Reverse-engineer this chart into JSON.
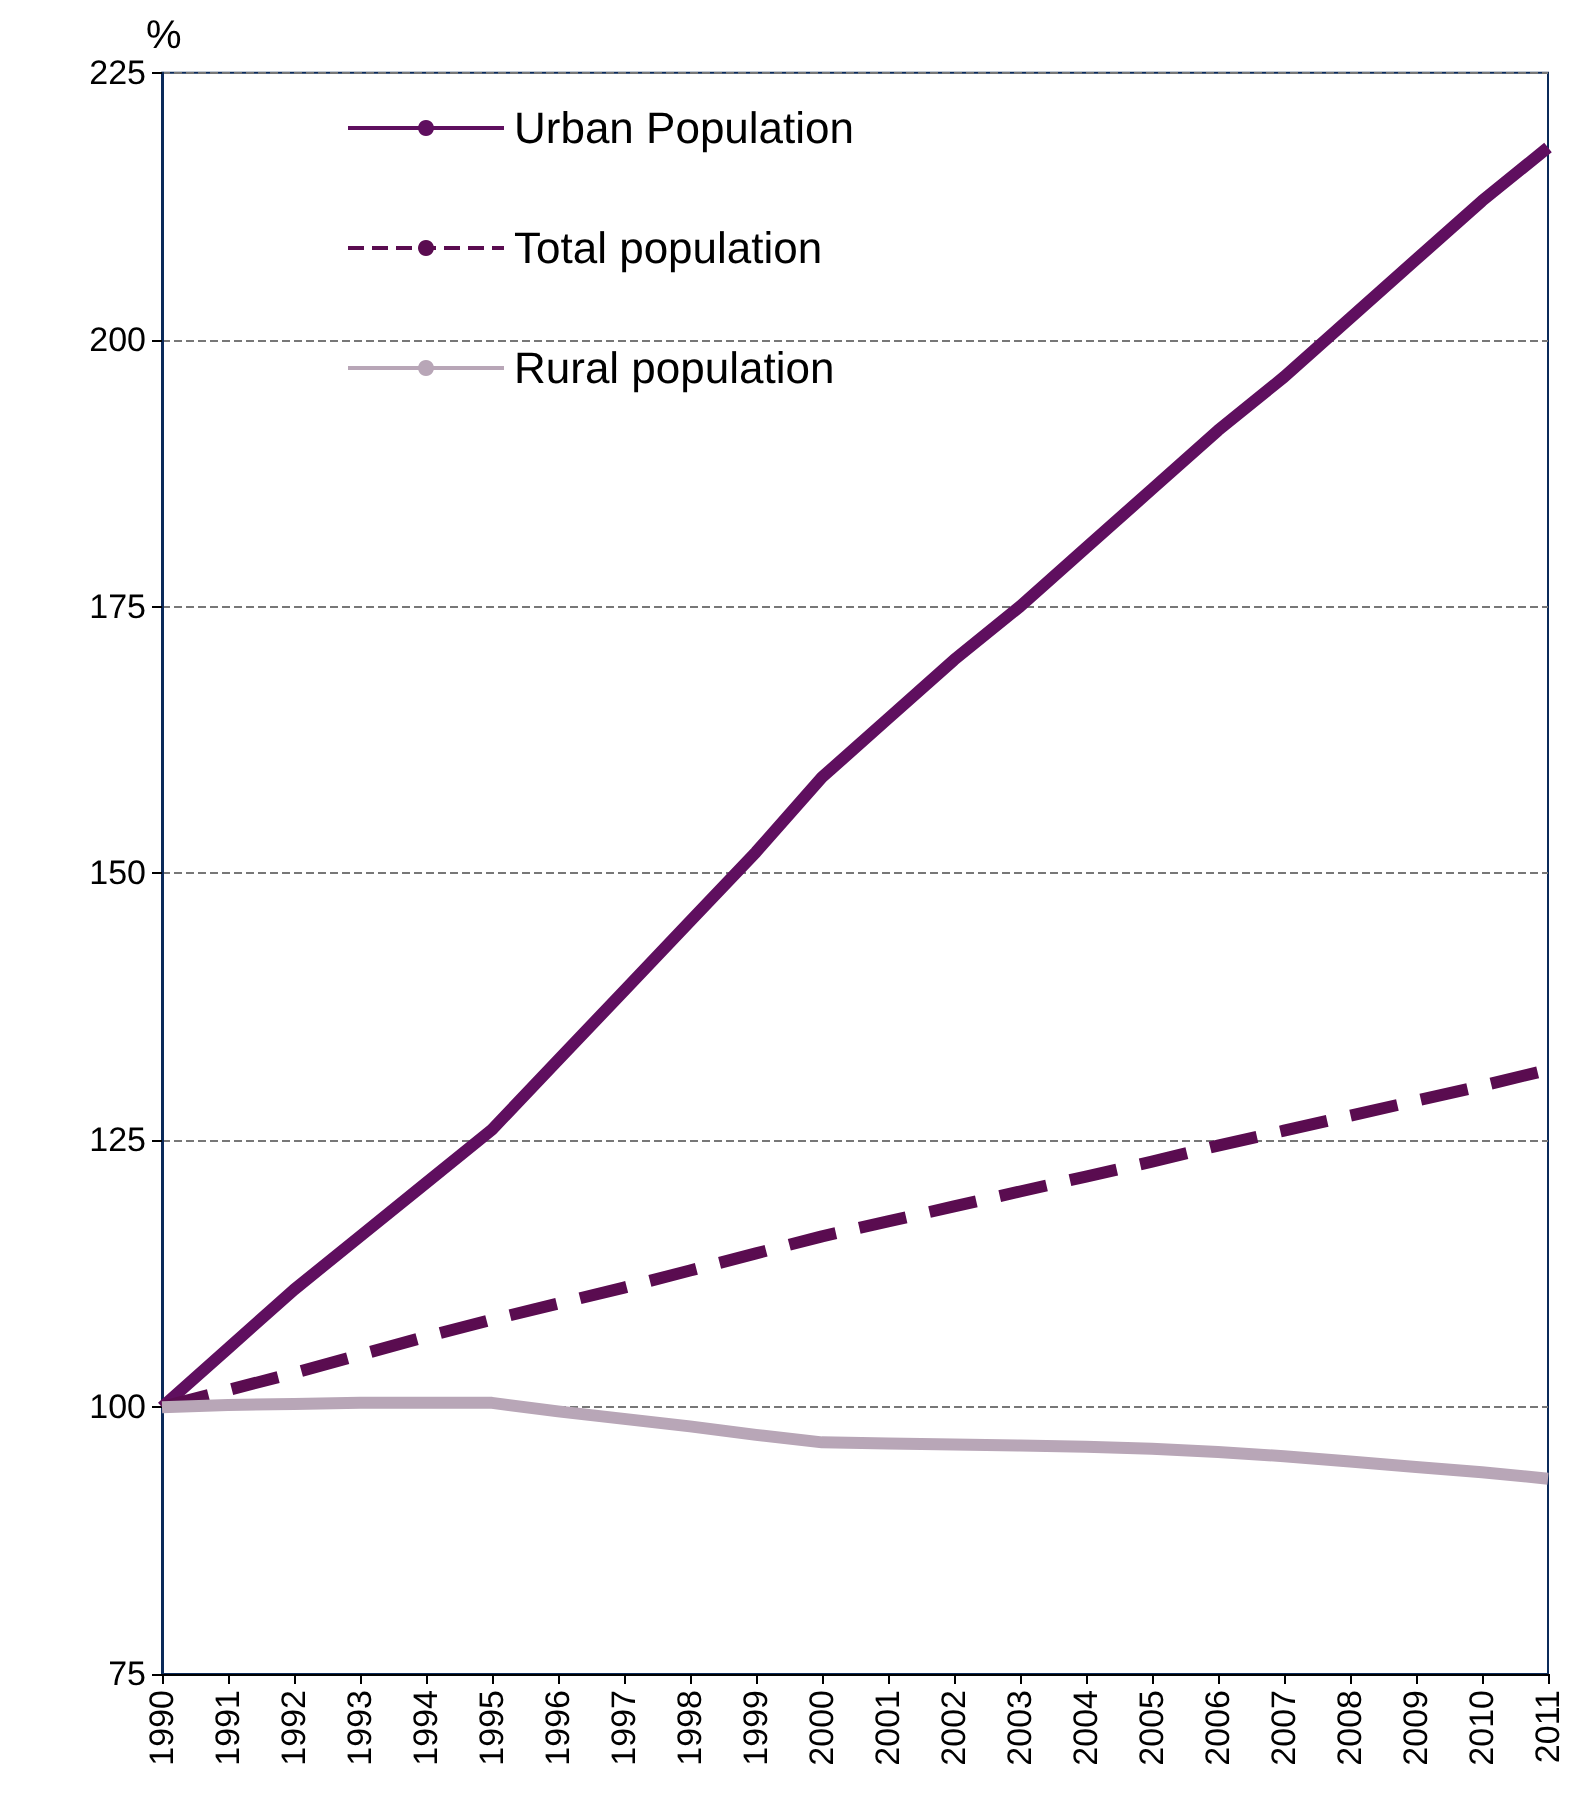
{
  "chart_data": {
    "type": "line",
    "ylabel": "%",
    "categories": [
      "1990",
      "1991",
      "1992",
      "1993",
      "1994",
      "1995",
      "1996",
      "1997",
      "1998",
      "1999",
      "2000",
      "2001",
      "2002",
      "2003",
      "2004",
      "2005",
      "2006",
      "2007",
      "2008",
      "2009",
      "2010",
      "2011"
    ],
    "series": [
      {
        "name": "Urban Population",
        "color": "#5f0f5f",
        "line_style": "solid",
        "values": [
          100,
          105.5,
          111,
          116,
          121,
          126,
          132.5,
          139,
          145.5,
          152,
          159,
          164.5,
          170,
          175,
          180.5,
          186,
          191.5,
          196.5,
          202,
          207.5,
          213,
          218
        ]
      },
      {
        "name": "Total population",
        "color": "#5a0c50",
        "line_style": "dashed",
        "values": [
          100,
          101.6,
          103.2,
          104.9,
          106.6,
          108.2,
          109.7,
          111.2,
          112.8,
          114.4,
          116,
          117.4,
          118.8,
          120.2,
          121.6,
          123,
          124.5,
          125.9,
          127.3,
          128.7,
          130.1,
          131.6
        ]
      },
      {
        "name": "Rural population",
        "color": "#b8a6b7",
        "line_style": "solid",
        "values": [
          100,
          100.2,
          100.3,
          100.4,
          100.4,
          100.4,
          99.6,
          98.9,
          98.2,
          97.4,
          96.7,
          96.6,
          96.5,
          96.4,
          96.3,
          96.1,
          95.8,
          95.4,
          94.9,
          94.4,
          93.9,
          93.3
        ]
      }
    ],
    "ylim": [
      75,
      225
    ],
    "yticks": [
      75,
      100,
      125,
      150,
      175,
      200,
      225
    ],
    "grid": "y",
    "legend": "top left",
    "marker": "none"
  }
}
